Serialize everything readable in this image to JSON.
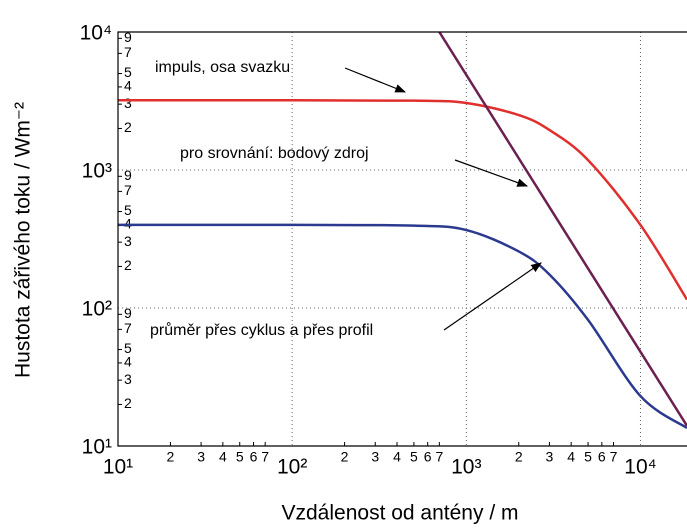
{
  "chart_data": {
    "type": "line",
    "xlabel": "Vzdálenost od antény / m",
    "ylabel": "Hustota zářivého toku / Wm⁻²",
    "log_x": true,
    "log_y": true,
    "grid": true,
    "xlim": [
      10,
      18500
    ],
    "ylim": [
      10,
      10000
    ],
    "xticks": [
      {
        "value": 10,
        "label": "10¹"
      },
      {
        "value": 100,
        "label": "10²"
      },
      {
        "value": 1000,
        "label": "10³"
      },
      {
        "value": 10000,
        "label": "10⁴"
      }
    ],
    "yticks": [
      {
        "value": 10,
        "label": "10¹"
      },
      {
        "value": 100,
        "label": "10²"
      },
      {
        "value": 1000,
        "label": "10³"
      },
      {
        "value": 10000,
        "label": "10⁴"
      }
    ],
    "xminor_ticks": [
      {
        "value": 20,
        "label": "2"
      },
      {
        "value": 30,
        "label": "3"
      },
      {
        "value": 40,
        "label": "4"
      },
      {
        "value": 50,
        "label": "5"
      },
      {
        "value": 60,
        "label": "6"
      },
      {
        "value": 70,
        "label": "7"
      },
      {
        "value": 200,
        "label": "2"
      },
      {
        "value": 300,
        "label": "3"
      },
      {
        "value": 400,
        "label": "4"
      },
      {
        "value": 500,
        "label": "5"
      },
      {
        "value": 600,
        "label": "6"
      },
      {
        "value": 700,
        "label": "7"
      },
      {
        "value": 2000,
        "label": "2"
      },
      {
        "value": 3000,
        "label": "3"
      },
      {
        "value": 4000,
        "label": "4"
      },
      {
        "value": 5000,
        "label": "5"
      },
      {
        "value": 6000,
        "label": "6"
      },
      {
        "value": 7000,
        "label": "7"
      }
    ],
    "yminor_ticks": [
      {
        "value": 20,
        "label": "2"
      },
      {
        "value": 30,
        "label": "3"
      },
      {
        "value": 40,
        "label": "4"
      },
      {
        "value": 50,
        "label": "5"
      },
      {
        "value": 70,
        "label": "7"
      },
      {
        "value": 90,
        "label": "9"
      },
      {
        "value": 200,
        "label": "2"
      },
      {
        "value": 300,
        "label": "3"
      },
      {
        "value": 400,
        "label": "4"
      },
      {
        "value": 500,
        "label": "5"
      },
      {
        "value": 700,
        "label": "7"
      },
      {
        "value": 900,
        "label": "9"
      },
      {
        "value": 2000,
        "label": "2"
      },
      {
        "value": 3000,
        "label": "3"
      },
      {
        "value": 4000,
        "label": "4"
      },
      {
        "value": 5000,
        "label": "5"
      },
      {
        "value": 7000,
        "label": "7"
      },
      {
        "value": 9000,
        "label": "9"
      }
    ],
    "series": [
      {
        "color": "#e0302e",
        "x": [
          10,
          100,
          500,
          1000,
          2000,
          3000,
          5000,
          10000,
          18500
        ],
        "values": [
          3200,
          3200,
          3180,
          3060,
          2500,
          1950,
          1180,
          400,
          115
        ]
      },
      {
        "color": "#2b3a8f",
        "x": [
          10,
          100,
          500,
          1000,
          2000,
          3000,
          5000,
          10000,
          18500
        ],
        "values": [
          400,
          400,
          395,
          367,
          257,
          175,
          82,
          23,
          13.5
        ]
      },
      {
        "color": "#6b2050",
        "x": [
          700,
          18500
        ],
        "values": [
          10000,
          14
        ]
      }
    ],
    "annotations": [
      "impuls, osa svazku",
      "pro srovnání: bodový zdroj",
      "průměr přes cyklus a přes profil"
    ]
  }
}
